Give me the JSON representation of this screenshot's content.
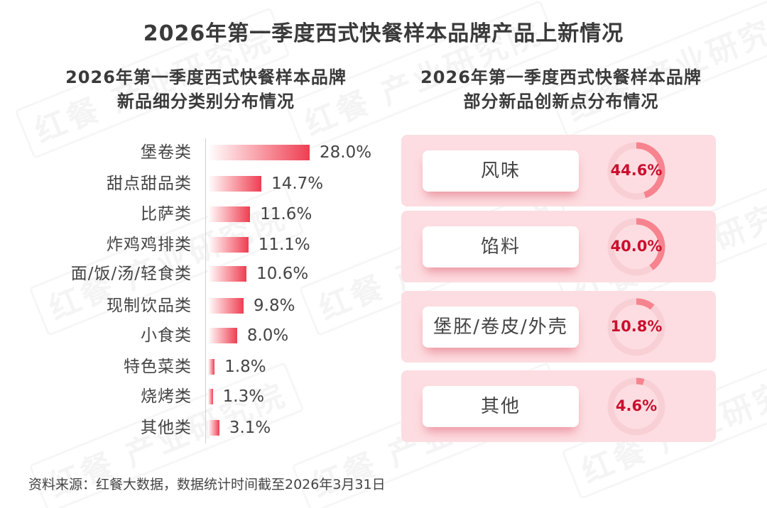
{
  "watermark_text": "红餐 产业研究院",
  "header": {
    "title": "2026年第一季度西式快餐样本品牌产品上新情况"
  },
  "left_panel": {
    "title_line1": "2026年第一季度西式快餐样本品牌",
    "title_line2": "新品细分类别分布情况",
    "bars": [
      {
        "label": "堡卷类",
        "value": 28.0,
        "display": "28.0%"
      },
      {
        "label": "甜点甜品类",
        "value": 14.7,
        "display": "14.7%"
      },
      {
        "label": "比萨类",
        "value": 11.6,
        "display": "11.6%"
      },
      {
        "label": "炸鸡鸡排类",
        "value": 11.1,
        "display": "11.1%"
      },
      {
        "label": "面/饭/汤/轻食类",
        "value": 10.6,
        "display": "10.6%"
      },
      {
        "label": "现制饮品类",
        "value": 9.8,
        "display": "9.8%"
      },
      {
        "label": "小食类",
        "value": 8.0,
        "display": "8.0%"
      },
      {
        "label": "特色菜类",
        "value": 1.8,
        "display": "1.8%"
      },
      {
        "label": "烧烤类",
        "value": 1.3,
        "display": "1.3%"
      },
      {
        "label": "其他类",
        "value": 3.1,
        "display": "3.1%"
      }
    ]
  },
  "right_panel": {
    "title_line1": "2026年第一季度西式快餐样本品牌",
    "title_line2": "部分新品创新点分布情况",
    "cards": [
      {
        "label": "风味",
        "value": 44.6,
        "display": "44.6%"
      },
      {
        "label": "馅料",
        "value": 40.0,
        "display": "40.0%"
      },
      {
        "label": "堡胚/卷皮/外壳",
        "value": 10.8,
        "display": "10.8%"
      },
      {
        "label": "其他",
        "value": 4.6,
        "display": "4.6%"
      }
    ]
  },
  "colors": {
    "bar_end": "#ee3e52",
    "card_bg": "#fddde1",
    "ring_fill": "#f7838f",
    "ring_track": "#f8cfd4",
    "value_text": "#c8102e"
  },
  "footer": {
    "source": "资料来源：红餐大数据，数据统计时间截至2026年3月31日"
  },
  "chart_data": [
    {
      "type": "bar",
      "orientation": "horizontal",
      "title": "2026年第一季度西式快餐样本品牌新品细分类别分布情况",
      "categories": [
        "堡卷类",
        "甜点甜品类",
        "比萨类",
        "炸鸡鸡排类",
        "面/饭/汤/轻食类",
        "现制饮品类",
        "小食类",
        "特色菜类",
        "烧烤类",
        "其他类"
      ],
      "values": [
        28.0,
        14.7,
        11.6,
        11.1,
        10.6,
        9.8,
        8.0,
        1.8,
        1.3,
        3.1
      ],
      "unit": "%",
      "xlabel": "",
      "ylabel": "",
      "grid": false,
      "legend": null
    },
    {
      "type": "pie",
      "style": "donut-rings",
      "title": "2026年第一季度西式快餐样本品牌部分新品创新点分布情况",
      "categories": [
        "风味",
        "馅料",
        "堡胚/卷皮/外壳",
        "其他"
      ],
      "values": [
        44.6,
        40.0,
        10.8,
        4.6
      ],
      "unit": "%",
      "legend": null
    }
  ]
}
